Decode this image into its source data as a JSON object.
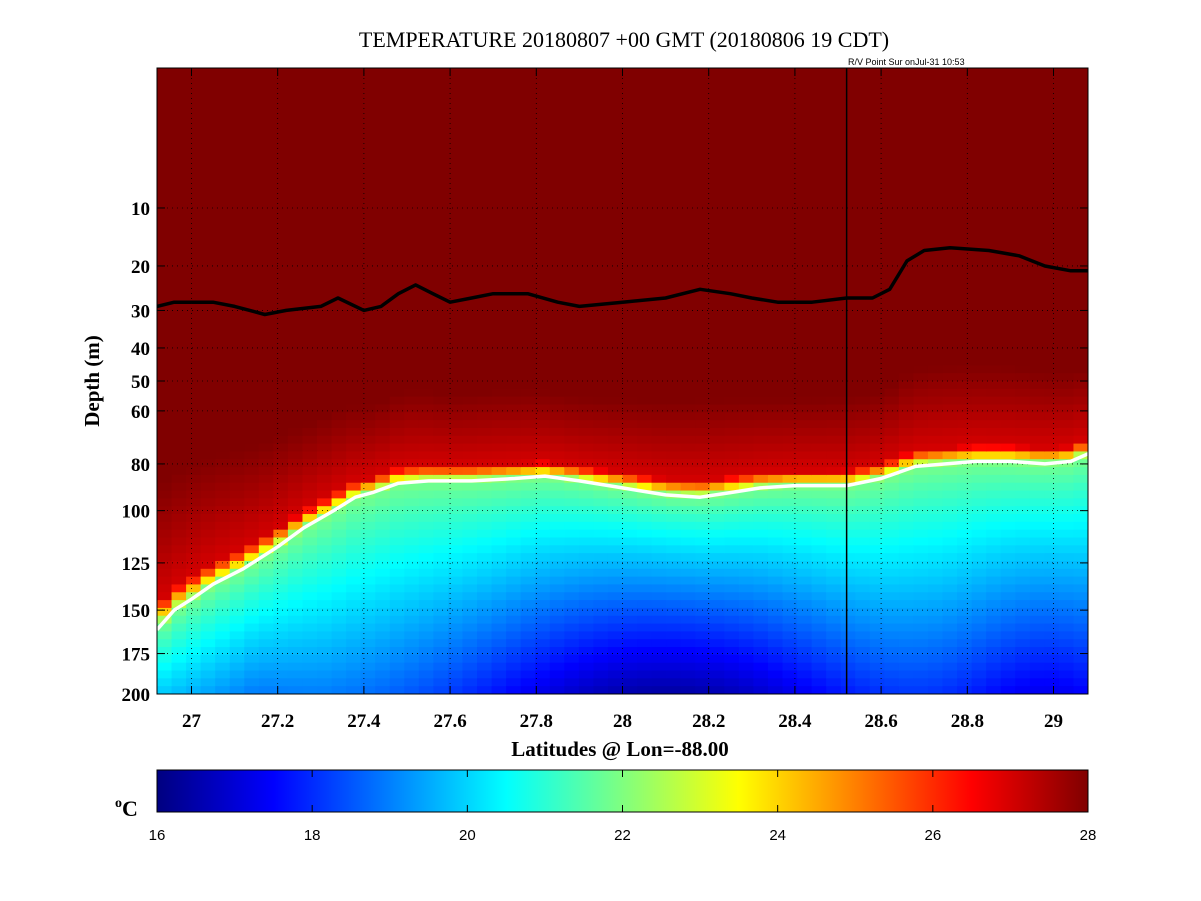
{
  "chart_data": {
    "type": "heatmap",
    "title": "TEMPERATURE 20180807 +00 GMT (20180806 19 CDT)",
    "annotation": "R/V Point Sur onJul-31 10:53",
    "xlabel": "Latitudes @ Lon=-88.00",
    "ylabel": "Depth (m)",
    "xlim": [
      26.92,
      29.08
    ],
    "ylim": [
      0,
      200
    ],
    "y_scale": "sqrt",
    "x_ticks": [
      27,
      27.2,
      27.4,
      27.6,
      27.8,
      28,
      28.2,
      28.4,
      28.6,
      28.8,
      29
    ],
    "x_tick_labels": [
      "27",
      "27.2",
      "27.4",
      "27.6",
      "27.8",
      "28",
      "28.2",
      "28.4",
      "28.6",
      "28.8",
      "29"
    ],
    "y_ticks": [
      10,
      20,
      30,
      40,
      50,
      60,
      80,
      100,
      125,
      150,
      175,
      200
    ],
    "y_tick_labels": [
      "10",
      "20",
      "30",
      "40",
      "50",
      "60",
      "80",
      "100",
      "125",
      "150",
      "175",
      "200"
    ],
    "grid": true,
    "colormap": "jet",
    "colorbar": {
      "label": "C",
      "label_superscript": "o",
      "range": [
        16,
        28
      ],
      "ticks": [
        16,
        18,
        20,
        22,
        24,
        26,
        28
      ],
      "tick_labels": [
        "16",
        "18",
        "20",
        "22",
        "24",
        "26",
        "28"
      ]
    },
    "vertical_marker": {
      "x": 28.52,
      "color": "#000000"
    },
    "contours": [
      {
        "name": "black-contour",
        "color": "#000000",
        "x": [
          26.92,
          26.96,
          27.0,
          27.05,
          27.1,
          27.17,
          27.22,
          27.3,
          27.34,
          27.4,
          27.44,
          27.48,
          27.52,
          27.56,
          27.6,
          27.65,
          27.7,
          27.78,
          27.85,
          27.9,
          28.0,
          28.1,
          28.18,
          28.25,
          28.3,
          28.36,
          28.44,
          28.52,
          28.58,
          28.62,
          28.66,
          28.7,
          28.76,
          28.85,
          28.92,
          28.98,
          29.04,
          29.08
        ],
        "y": [
          29,
          28,
          28,
          28,
          29,
          31,
          30,
          29,
          27,
          30,
          29,
          26,
          24,
          26,
          28,
          27,
          26,
          26,
          28,
          29,
          28,
          27,
          25,
          26,
          27,
          28,
          28,
          27,
          27,
          25,
          19,
          17,
          16.5,
          17,
          18,
          20,
          21,
          21
        ]
      },
      {
        "name": "white-contour",
        "color": "#ffffff",
        "x": [
          26.92,
          26.96,
          27.0,
          27.05,
          27.12,
          27.2,
          27.26,
          27.33,
          27.38,
          27.42,
          27.48,
          27.55,
          27.65,
          27.75,
          27.82,
          27.9,
          28.0,
          28.1,
          28.18,
          28.25,
          28.32,
          28.4,
          28.45,
          28.52,
          28.6,
          28.68,
          28.75,
          28.82,
          28.9,
          28.98,
          29.04,
          29.08
        ],
        "y": [
          161,
          150,
          144,
          136,
          128,
          117,
          108,
          100,
          94,
          92,
          88,
          87,
          87,
          86,
          85,
          87,
          90,
          93,
          94,
          92,
          90,
          89,
          89,
          89,
          86,
          81,
          80,
          79,
          79,
          80,
          79,
          76
        ]
      }
    ]
  }
}
